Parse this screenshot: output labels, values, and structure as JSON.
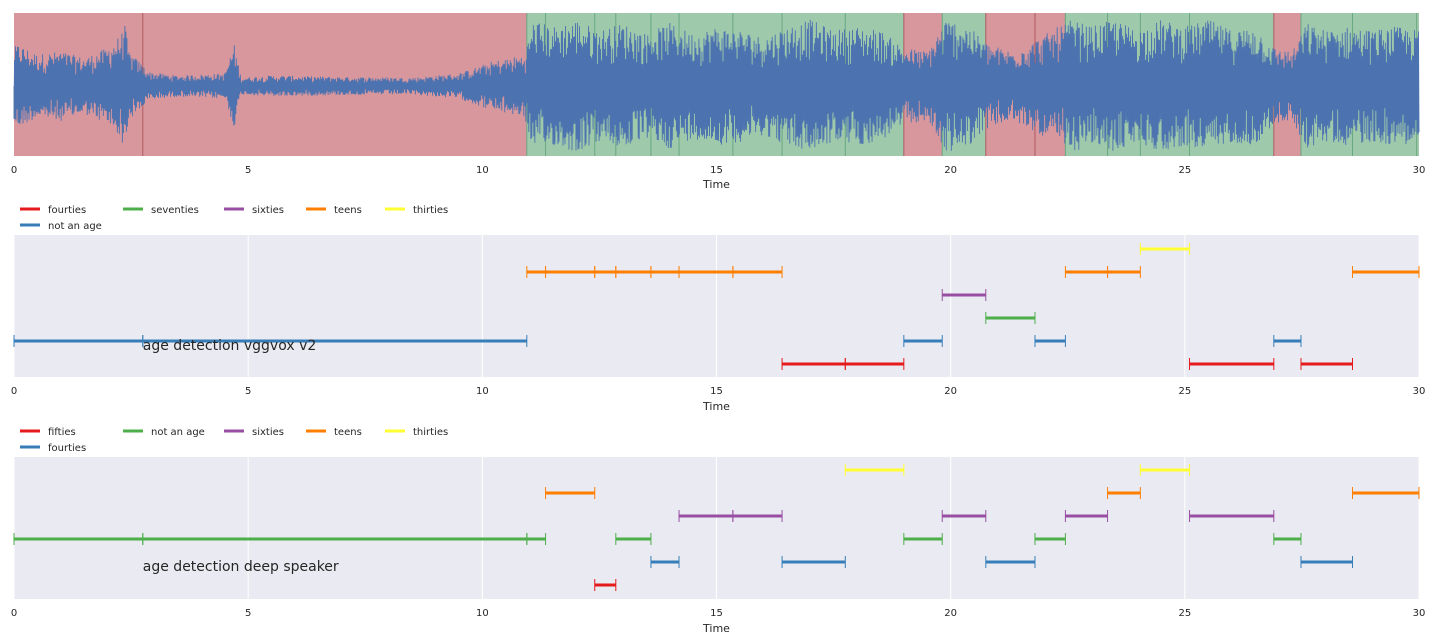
{
  "chart_data": [
    {
      "type": "area",
      "chart": "waveform",
      "xlabel": "Time",
      "xlim": [
        0,
        30
      ],
      "xticks": [
        0,
        5,
        10,
        15,
        20,
        25,
        30
      ],
      "yticks_visible": false,
      "grid": false,
      "colors": {
        "waveform": "#4c72b0",
        "red_region": "#d7979d",
        "green_region": "#9ec9ab",
        "boundary": "#8a4a4a"
      },
      "regions": [
        {
          "start": 0,
          "end": 10.95,
          "class": "red"
        },
        {
          "start": 10.95,
          "end": 19.0,
          "class": "green"
        },
        {
          "start": 19.0,
          "end": 19.82,
          "class": "red"
        },
        {
          "start": 19.82,
          "end": 20.75,
          "class": "green"
        },
        {
          "start": 20.75,
          "end": 22.45,
          "class": "red"
        },
        {
          "start": 22.45,
          "end": 26.9,
          "class": "green"
        },
        {
          "start": 26.9,
          "end": 27.48,
          "class": "red"
        },
        {
          "start": 27.48,
          "end": 30,
          "class": "green"
        }
      ],
      "boundaries": [
        2.75,
        10.95,
        11.35,
        12.4,
        12.85,
        13.6,
        14.2,
        15.35,
        16.4,
        17.75,
        19.0,
        19.82,
        20.75,
        21.8,
        22.45,
        23.35,
        24.05,
        25.1,
        26.9,
        27.48,
        28.58,
        29.95
      ],
      "amplitude_envelope": [
        [
          0,
          0.55
        ],
        [
          0.1,
          0.6
        ],
        [
          0.5,
          0.45
        ],
        [
          1.0,
          0.5
        ],
        [
          1.5,
          0.4
        ],
        [
          2.0,
          0.55
        ],
        [
          2.3,
          0.75
        ],
        [
          2.35,
          0.98
        ],
        [
          2.45,
          0.5
        ],
        [
          2.9,
          0.2
        ],
        [
          3.5,
          0.15
        ],
        [
          4.5,
          0.18
        ],
        [
          4.7,
          0.6
        ],
        [
          4.85,
          0.12
        ],
        [
          5.5,
          0.15
        ],
        [
          7.0,
          0.13
        ],
        [
          8.5,
          0.12
        ],
        [
          9.5,
          0.18
        ],
        [
          10.2,
          0.35
        ],
        [
          10.9,
          0.45
        ],
        [
          11.1,
          0.95
        ],
        [
          11.5,
          0.85
        ],
        [
          12.0,
          0.95
        ],
        [
          12.5,
          0.8
        ],
        [
          13.0,
          0.9
        ],
        [
          13.5,
          0.75
        ],
        [
          14.0,
          0.9
        ],
        [
          14.5,
          0.75
        ],
        [
          15.0,
          0.85
        ],
        [
          15.5,
          0.8
        ],
        [
          16.0,
          0.7
        ],
        [
          16.5,
          0.85
        ],
        [
          17.0,
          0.95
        ],
        [
          17.5,
          0.8
        ],
        [
          18.0,
          0.85
        ],
        [
          18.5,
          0.8
        ],
        [
          19.0,
          0.55
        ],
        [
          19.5,
          0.5
        ],
        [
          19.9,
          0.95
        ],
        [
          20.3,
          0.9
        ],
        [
          20.8,
          0.6
        ],
        [
          21.3,
          0.5
        ],
        [
          21.8,
          0.65
        ],
        [
          22.3,
          0.85
        ],
        [
          22.6,
          0.95
        ],
        [
          23.0,
          0.85
        ],
        [
          23.5,
          0.95
        ],
        [
          24.0,
          0.8
        ],
        [
          24.5,
          0.95
        ],
        [
          25.0,
          0.85
        ],
        [
          25.5,
          0.95
        ],
        [
          26.0,
          0.8
        ],
        [
          26.5,
          0.85
        ],
        [
          26.9,
          0.55
        ],
        [
          27.3,
          0.5
        ],
        [
          27.6,
          0.9
        ],
        [
          28.0,
          0.8
        ],
        [
          28.5,
          0.85
        ],
        [
          29.0,
          0.8
        ],
        [
          29.5,
          0.85
        ],
        [
          30.0,
          0.8
        ]
      ]
    },
    {
      "type": "timeline",
      "title": "",
      "annotation": "age detection vggvox v2",
      "annotation_x": 2.75,
      "xlabel": "Time",
      "xlim": [
        0,
        30
      ],
      "xticks": [
        0,
        5,
        10,
        15,
        20,
        25,
        30
      ],
      "rows": 6,
      "legend": [
        {
          "label": "fourties",
          "color": "#e41a1c"
        },
        {
          "label": "seventies",
          "color": "#4daf4a"
        },
        {
          "label": "sixties",
          "color": "#984ea3"
        },
        {
          "label": "teens",
          "color": "#ff7f00"
        },
        {
          "label": "thirties",
          "color": "#ffff33"
        },
        {
          "label": "not an age",
          "color": "#377eb8"
        }
      ],
      "segments": [
        {
          "start": 16.4,
          "end": 17.75,
          "label": "fourties",
          "row": 0
        },
        {
          "start": 17.75,
          "end": 19.0,
          "label": "fourties",
          "row": 0
        },
        {
          "start": 25.1,
          "end": 26.9,
          "label": "fourties",
          "row": 0
        },
        {
          "start": 27.48,
          "end": 28.58,
          "label": "fourties",
          "row": 0
        },
        {
          "start": 0,
          "end": 2.75,
          "label": "not an age",
          "row": 1
        },
        {
          "start": 2.75,
          "end": 10.95,
          "label": "not an age",
          "row": 1
        },
        {
          "start": 19.0,
          "end": 19.82,
          "label": "not an age",
          "row": 1
        },
        {
          "start": 21.8,
          "end": 22.45,
          "label": "not an age",
          "row": 1
        },
        {
          "start": 26.9,
          "end": 27.48,
          "label": "not an age",
          "row": 1
        },
        {
          "start": 20.75,
          "end": 21.8,
          "label": "seventies",
          "row": 2
        },
        {
          "start": 19.82,
          "end": 20.75,
          "label": "sixties",
          "row": 3
        },
        {
          "start": 10.95,
          "end": 11.35,
          "label": "teens",
          "row": 4
        },
        {
          "start": 11.35,
          "end": 12.4,
          "label": "teens",
          "row": 4
        },
        {
          "start": 12.4,
          "end": 12.85,
          "label": "teens",
          "row": 4
        },
        {
          "start": 12.85,
          "end": 13.6,
          "label": "teens",
          "row": 4
        },
        {
          "start": 13.6,
          "end": 14.2,
          "label": "teens",
          "row": 4
        },
        {
          "start": 14.2,
          "end": 15.35,
          "label": "teens",
          "row": 4
        },
        {
          "start": 15.35,
          "end": 16.4,
          "label": "teens",
          "row": 4
        },
        {
          "start": 22.45,
          "end": 23.35,
          "label": "teens",
          "row": 4
        },
        {
          "start": 23.35,
          "end": 24.05,
          "label": "teens",
          "row": 4
        },
        {
          "start": 28.58,
          "end": 30.0,
          "label": "teens",
          "row": 4
        },
        {
          "start": 24.05,
          "end": 25.1,
          "label": "thirties",
          "row": 5
        }
      ]
    },
    {
      "type": "timeline",
      "title": "",
      "annotation": "age detection deep speaker",
      "annotation_x": 2.75,
      "xlabel": "Time",
      "xlim": [
        0,
        30
      ],
      "xticks": [
        0,
        5,
        10,
        15,
        20,
        25,
        30
      ],
      "rows": 6,
      "legend": [
        {
          "label": "fifties",
          "color": "#e41a1c"
        },
        {
          "label": "not an age",
          "color": "#4daf4a"
        },
        {
          "label": "sixties",
          "color": "#984ea3"
        },
        {
          "label": "teens",
          "color": "#ff7f00"
        },
        {
          "label": "thirties",
          "color": "#ffff33"
        },
        {
          "label": "fourties",
          "color": "#377eb8"
        }
      ],
      "segments": [
        {
          "start": 12.4,
          "end": 12.85,
          "label": "fifties",
          "row": 0
        },
        {
          "start": 13.6,
          "end": 14.2,
          "label": "fourties",
          "row": 1
        },
        {
          "start": 16.4,
          "end": 17.75,
          "label": "fourties",
          "row": 1
        },
        {
          "start": 20.75,
          "end": 21.8,
          "label": "fourties",
          "row": 1
        },
        {
          "start": 27.48,
          "end": 28.58,
          "label": "fourties",
          "row": 1
        },
        {
          "start": 0,
          "end": 2.75,
          "label": "not an age",
          "row": 2
        },
        {
          "start": 2.75,
          "end": 10.95,
          "label": "not an age",
          "row": 2
        },
        {
          "start": 10.95,
          "end": 11.35,
          "label": "not an age",
          "row": 2
        },
        {
          "start": 12.85,
          "end": 13.6,
          "label": "not an age",
          "row": 2
        },
        {
          "start": 19.0,
          "end": 19.82,
          "label": "not an age",
          "row": 2
        },
        {
          "start": 21.8,
          "end": 22.45,
          "label": "not an age",
          "row": 2
        },
        {
          "start": 26.9,
          "end": 27.48,
          "label": "not an age",
          "row": 2
        },
        {
          "start": 14.2,
          "end": 15.35,
          "label": "sixties",
          "row": 3
        },
        {
          "start": 15.35,
          "end": 16.4,
          "label": "sixties",
          "row": 3
        },
        {
          "start": 19.82,
          "end": 20.75,
          "label": "sixties",
          "row": 3
        },
        {
          "start": 22.45,
          "end": 23.35,
          "label": "sixties",
          "row": 3
        },
        {
          "start": 25.1,
          "end": 26.9,
          "label": "sixties",
          "row": 3
        },
        {
          "start": 11.35,
          "end": 12.4,
          "label": "teens",
          "row": 4
        },
        {
          "start": 23.35,
          "end": 24.05,
          "label": "teens",
          "row": 4
        },
        {
          "start": 28.58,
          "end": 30.0,
          "label": "teens",
          "row": 4
        },
        {
          "start": 17.75,
          "end": 19.0,
          "label": "thirties",
          "row": 5
        },
        {
          "start": 24.05,
          "end": 25.1,
          "label": "thirties",
          "row": 5
        }
      ]
    }
  ]
}
